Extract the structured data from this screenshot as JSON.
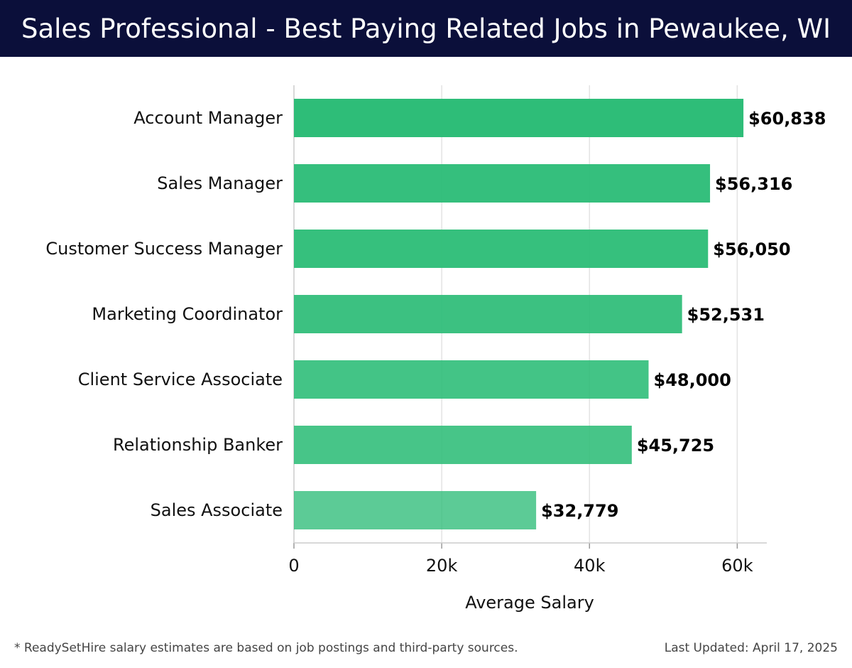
{
  "header": {
    "title": "Sales Professional - Best Paying Related Jobs in Pewaukee, WI"
  },
  "footer": {
    "note": "* ReadySetHire salary estimates are based on job postings and third-party sources.",
    "updated": "Last Updated: April 17, 2025"
  },
  "colors": {
    "header_bg": "#0b0f3a",
    "bar": "#2ebd78",
    "grid": "#e3e3e3"
  },
  "chart_data": {
    "type": "bar",
    "orientation": "horizontal",
    "title": "Sales Professional - Best Paying Related Jobs in Pewaukee, WI",
    "xlabel": "Average Salary",
    "ylabel": "",
    "xlim": [
      0,
      64000
    ],
    "xticks": [
      0,
      20000,
      40000,
      60000
    ],
    "xtick_labels": [
      "0",
      "20k",
      "40k",
      "60k"
    ],
    "grid": true,
    "categories": [
      "Account Manager",
      "Sales Manager",
      "Customer Success Manager",
      "Marketing Coordinator",
      "Client Service Associate",
      "Relationship Banker",
      "Sales Associate"
    ],
    "values": [
      60838,
      56316,
      56050,
      52531,
      48000,
      45725,
      32779
    ],
    "value_labels": [
      "$60,838",
      "$56,316",
      "$56,050",
      "$52,531",
      "$48,000",
      "$45,725",
      "$32,779"
    ]
  }
}
